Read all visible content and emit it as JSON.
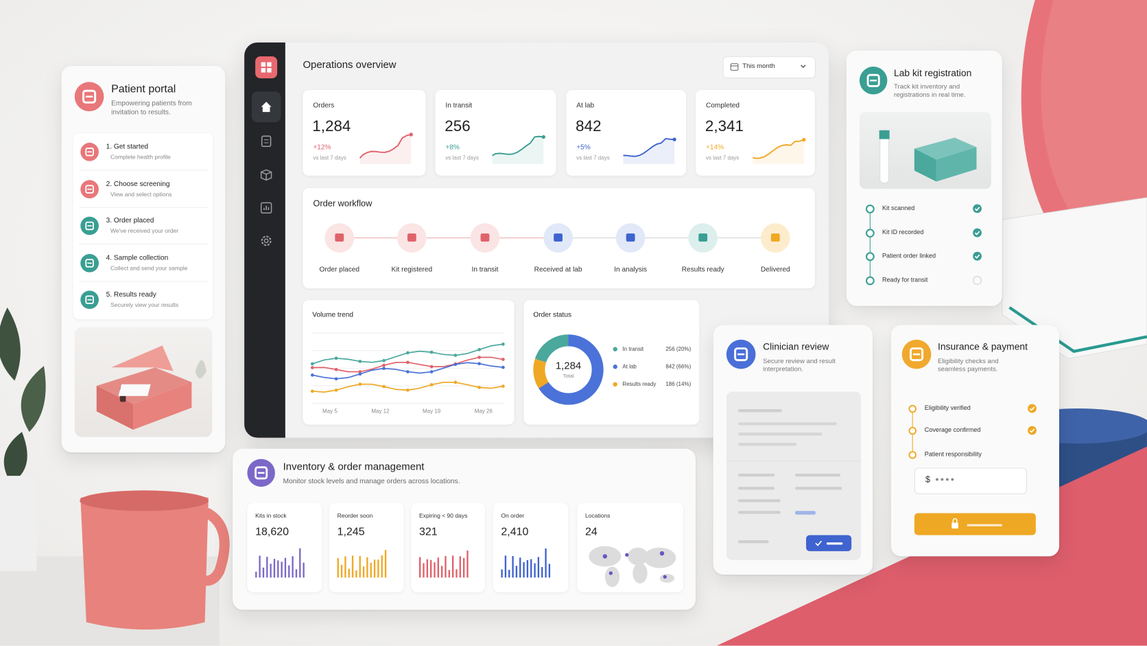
{
  "patient_portal": {
    "title": "Patient portal",
    "subtitle": "Empowering patients from invitation to results.",
    "steps": [
      {
        "title": "1. Get started",
        "desc": "Complete health profile"
      },
      {
        "title": "2. Choose screening",
        "desc": "View and select options"
      },
      {
        "title": "3. Order placed",
        "desc": "We've received your order"
      },
      {
        "title": "4. Sample collection",
        "desc": "Collect and send your sample"
      },
      {
        "title": "5. Results ready",
        "desc": "Securely view your results"
      }
    ]
  },
  "dashboard": {
    "title": "Operations overview",
    "period": "This month",
    "kpis": [
      {
        "label": "Orders",
        "value": "1,284",
        "change": "+12%",
        "note": "vs last 7 days",
        "color": "#e0626a"
      },
      {
        "label": "In transit",
        "value": "256",
        "change": "+8%",
        "note": "vs last 7 days",
        "color": "#3a9e93"
      },
      {
        "label": "At lab",
        "value": "842",
        "change": "+5%",
        "note": "vs last 7 days",
        "color": "#3f63cf"
      },
      {
        "label": "Completed",
        "value": "2,341",
        "change": "+14%",
        "note": "vs last 7 days",
        "color": "#efa824"
      }
    ],
    "workflow": {
      "title": "Order workflow",
      "steps": [
        "Order placed",
        "Kit registered",
        "In transit",
        "Received at lab",
        "In analysis",
        "Results ready",
        "Delivered"
      ]
    },
    "volume_trend": {
      "title": "Volume trend",
      "x_labels": [
        "May 5",
        "May 12",
        "May 19",
        "May 26"
      ]
    },
    "order_status": {
      "title": "Order status",
      "total": "1,284",
      "total_label": "Total",
      "items": [
        {
          "name": "In transit",
          "label": "256 (20%)",
          "value": 20,
          "color": "#4aa89c"
        },
        {
          "name": "At lab",
          "label": "842 (66%)",
          "value": 66,
          "color": "#4a72d8"
        },
        {
          "name": "Results ready",
          "label": "186 (14%)",
          "value": 14,
          "color": "#efa824"
        }
      ]
    }
  },
  "lab_kit": {
    "title": "Lab kit registration",
    "subtitle": "Track kit inventory and registrations in real time.",
    "steps": [
      {
        "label": "Kit scanned",
        "done": true
      },
      {
        "label": "Kit ID recorded",
        "done": true
      },
      {
        "label": "Patient order linked",
        "done": true
      },
      {
        "label": "Ready for transit",
        "done": false
      }
    ]
  },
  "inventory": {
    "title": "Inventory & order management",
    "subtitle": "Monitor stock levels and manage orders across locations.",
    "stats": [
      {
        "label": "Kits in stock",
        "value": "18,620",
        "color": "#7b68c8"
      },
      {
        "label": "Reorder soon",
        "value": "1,245",
        "color": "#efa824"
      },
      {
        "label": "Expiring < 90 days",
        "value": "321",
        "color": "#e0626a"
      },
      {
        "label": "On order",
        "value": "2,410",
        "color": "#3f63cf"
      },
      {
        "label": "Locations",
        "value": "24",
        "color": "#6b55c0"
      }
    ]
  },
  "clinician": {
    "title": "Clinician review",
    "subtitle": "Secure review and result interpretation."
  },
  "insurance": {
    "title": "Insurance & payment",
    "subtitle": "Eligibility checks and seamless payments.",
    "steps": [
      {
        "label": "Eligibility verified",
        "done": true
      },
      {
        "label": "Coverage confirmed",
        "done": true
      },
      {
        "label": "Patient responsibility",
        "done": false
      }
    ],
    "currency": "$"
  }
}
